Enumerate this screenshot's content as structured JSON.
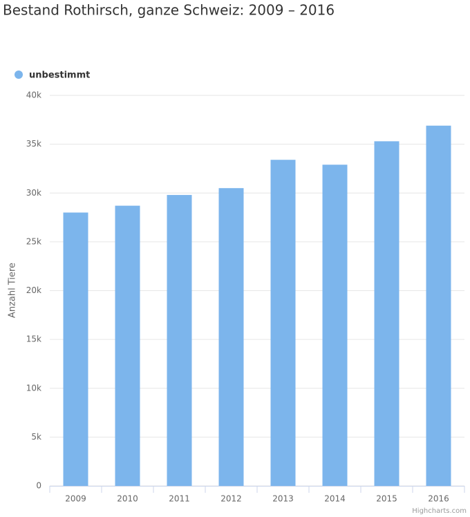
{
  "chart_data": {
    "type": "bar",
    "title": "Bestand Rothirsch, ganze Schweiz: 2009 – 2016",
    "y_axis_label": "Anzahl Tiere",
    "credits": "Highcharts.com",
    "categories": [
      "2009",
      "2010",
      "2011",
      "2012",
      "2013",
      "2014",
      "2015",
      "2016"
    ],
    "series": [
      {
        "name": "unbestimmt",
        "color": "#7cb5ec",
        "values": [
          28000,
          28700,
          29800,
          30500,
          33400,
          32900,
          35300,
          36900
        ]
      }
    ],
    "ylim": [
      0,
      40000
    ],
    "yticks": [
      0,
      {
        "value": 5000,
        "label": "5k"
      },
      {
        "value": 10000,
        "label": "10k"
      },
      {
        "value": 15000,
        "label": "15k"
      },
      {
        "value": 20000,
        "label": "20k"
      },
      {
        "value": 25000,
        "label": "25k"
      },
      {
        "value": 30000,
        "label": "30k"
      },
      {
        "value": 35000,
        "label": "35k"
      },
      {
        "value": 40000,
        "label": "40k"
      }
    ],
    "grid": true,
    "legend": "top-left"
  }
}
